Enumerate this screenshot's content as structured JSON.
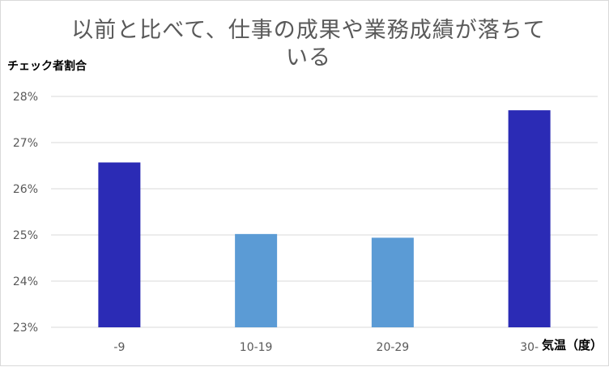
{
  "chart_data": {
    "type": "bar",
    "title": "以前と比べて、仕事の成果や業務成績が落ちている",
    "title_lines": [
      "以前と比べて、仕事の成果や業務成績が落ちて",
      "いる"
    ],
    "ylabel": "チェック者割合",
    "xlabel": "気温（度）",
    "categories": [
      "-9",
      "10-19",
      "20-29",
      "30-"
    ],
    "values": [
      26.57,
      25.02,
      24.94,
      27.7
    ],
    "unit": "%",
    "ylim": [
      23,
      28
    ],
    "yticks": [
      23,
      24,
      25,
      26,
      27,
      28
    ],
    "ytick_labels": [
      "23%",
      "24%",
      "25%",
      "26%",
      "27%",
      "28%"
    ],
    "bar_colors": [
      "#2B2BB5",
      "#5B9BD5",
      "#5B9BD5",
      "#2B2BB5"
    ],
    "grid": true,
    "grid_color": "#d9d9d9",
    "legend": "none"
  }
}
